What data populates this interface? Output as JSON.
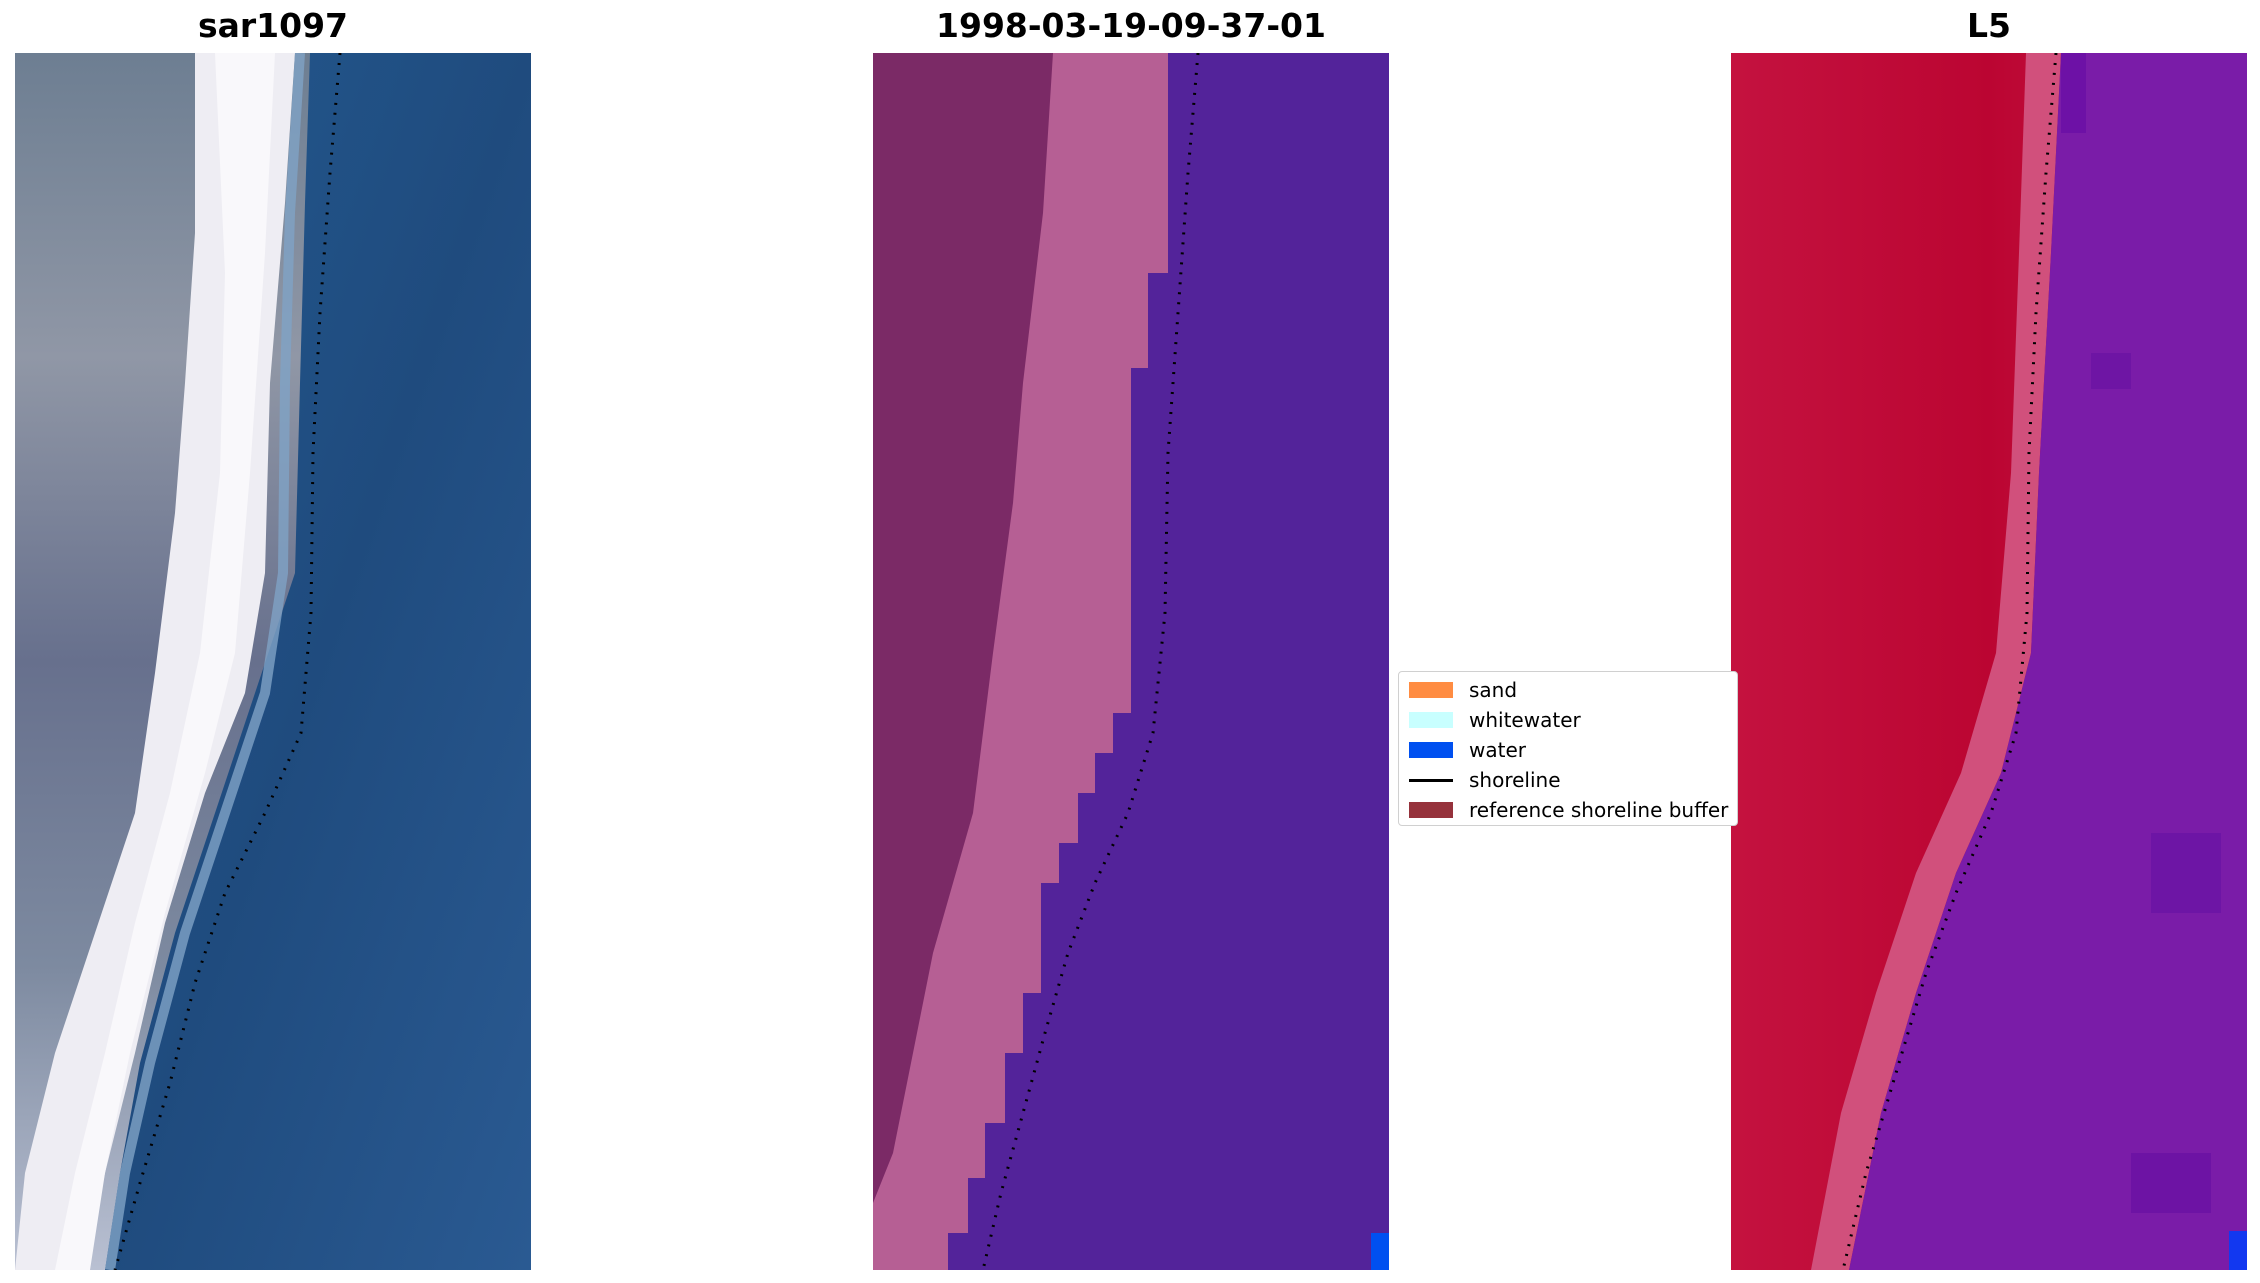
{
  "panels": [
    {
      "title": "sar1097"
    },
    {
      "title": "1998-03-19-09-37-01"
    },
    {
      "title": "L5"
    }
  ],
  "legend": {
    "items": [
      {
        "label": "sand",
        "type": "patch",
        "color": "#ff8c42"
      },
      {
        "label": "whitewater",
        "type": "patch",
        "color": "#c8ffff"
      },
      {
        "label": "water",
        "type": "patch",
        "color": "#0050f0"
      },
      {
        "label": "shoreline",
        "type": "line",
        "color": "#000000"
      },
      {
        "label": "reference shoreline buffer",
        "type": "patch",
        "color": "#96323c"
      }
    ]
  },
  "colors": {
    "rgb_land": "#6e7f93",
    "rgb_whitewater": "#f1eff4",
    "rgb_water": "#22548c",
    "classified_land_dark": "#7c2a66",
    "classified_land_light": "#b75f94",
    "classified_water": "#53239a",
    "index_land": "#c0083a",
    "index_transition": "#d6537e",
    "index_water": "#7a1ca8"
  }
}
